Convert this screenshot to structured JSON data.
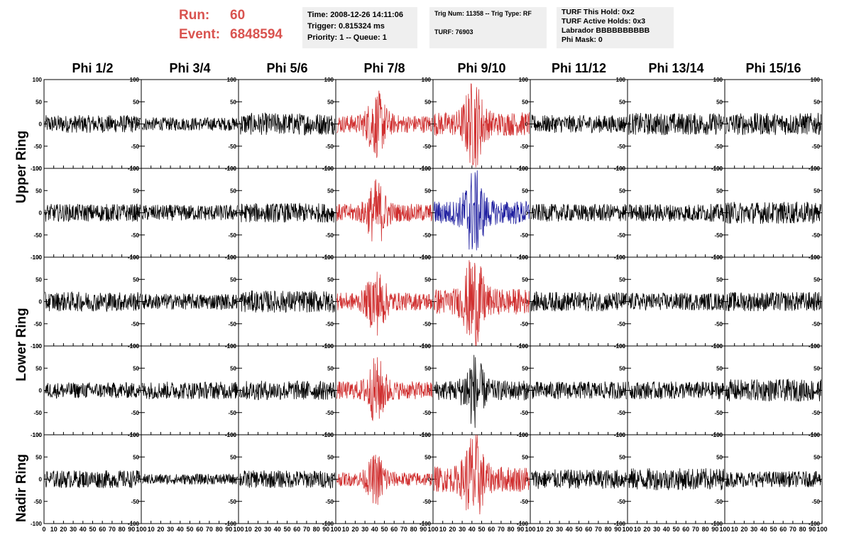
{
  "run_info": {
    "run_label": "Run:",
    "run_value": "60",
    "event_label": "Event:",
    "event_value": "6848594"
  },
  "time_box": {
    "line1": "Time: 2008-12-26 14:11:06",
    "line2": "Trigger: 0.815324 ms",
    "line3": "Priority: 1 -- Queue: 1"
  },
  "trig_box": {
    "line1": "Trig Num: 11358 -- Trig Type: RF",
    "line2": "TURF: 76903"
  },
  "turf_box": {
    "line1": "TURF This Hold: 0x2",
    "line2": "TURF Active Holds: 0x3",
    "line3": "Labrador BBBBBBBBBB",
    "line4": "Phi Mask: 0"
  },
  "phi_labels": [
    "Phi 1/2",
    "Phi 3/4",
    "Phi 5/6",
    "Phi 7/8",
    "Phi 9/10",
    "Phi 11/12",
    "Phi 13/14",
    "Phi 15/16"
  ],
  "ring_labels": {
    "upper": "Upper Ring",
    "lower": "Lower Ring",
    "nadir": "Nadir Ring"
  },
  "colors": {
    "trace_default": "#000000",
    "trace_triggered": "#d03030",
    "trace_selected": "#2020a0",
    "run_text": "#d9534f",
    "info_bg": "#efefef"
  },
  "chart_data": {
    "type": "line",
    "xlim": [
      0,
      100
    ],
    "ylim": [
      -100,
      100
    ],
    "x_ticks": [
      0,
      10,
      20,
      30,
      40,
      50,
      60,
      70,
      80,
      90,
      100
    ],
    "y_ticks": [
      -100,
      -50,
      0,
      50,
      100
    ],
    "rows": 5,
    "cols": 8,
    "panel_colors": [
      [
        "black",
        "black",
        "black",
        "red",
        "red",
        "black",
        "black",
        "black"
      ],
      [
        "black",
        "black",
        "black",
        "red",
        "blue",
        "black",
        "black",
        "black"
      ],
      [
        "black",
        "black",
        "black",
        "red",
        "red",
        "black",
        "black",
        "black"
      ],
      [
        "black",
        "black",
        "black",
        "red",
        "black",
        "black",
        "black",
        "black"
      ],
      [
        "black",
        "black",
        "black",
        "red",
        "red",
        "black",
        "black",
        "black"
      ]
    ],
    "panel_amplitude": [
      [
        20,
        15,
        25,
        45,
        60,
        20,
        25,
        25
      ],
      [
        20,
        18,
        22,
        45,
        60,
        20,
        20,
        25
      ],
      [
        22,
        18,
        25,
        45,
        65,
        22,
        20,
        22
      ],
      [
        18,
        20,
        22,
        45,
        50,
        20,
        20,
        25
      ],
      [
        20,
        12,
        20,
        35,
        65,
        22,
        25,
        18
      ]
    ],
    "panel_pulse": [
      [
        false,
        false,
        false,
        true,
        true,
        false,
        false,
        false
      ],
      [
        false,
        false,
        false,
        true,
        true,
        false,
        false,
        false
      ],
      [
        false,
        false,
        false,
        true,
        true,
        false,
        false,
        false
      ],
      [
        false,
        false,
        false,
        true,
        true,
        false,
        false,
        false
      ],
      [
        false,
        false,
        false,
        true,
        true,
        false,
        false,
        false
      ]
    ]
  }
}
